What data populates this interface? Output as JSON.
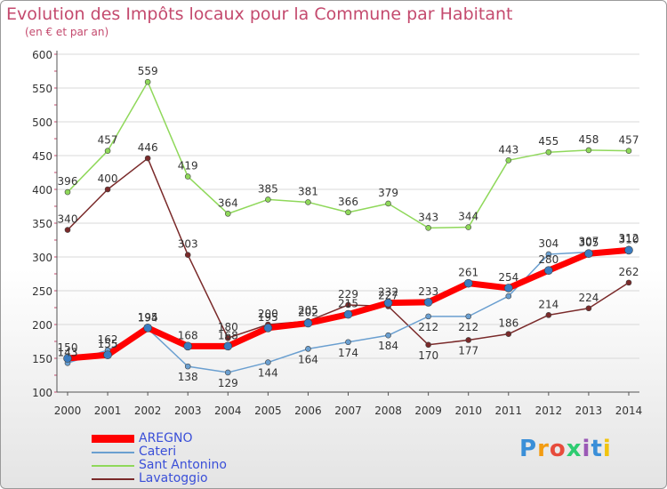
{
  "header": {
    "title": "Evolution des Impôts locaux pour la Commune par Habitant",
    "subtitle": "(en € et par an)"
  },
  "logo": {
    "text": "Proxiti",
    "colors": [
      "#3a8fd8",
      "#f39c12",
      "#e74c3c",
      "#2ecc71",
      "#9b59b6",
      "#3a8fd8",
      "#f1c40f"
    ]
  },
  "chart_data": {
    "type": "line",
    "title": "Evolution des Impôts locaux pour la Commune par Habitant",
    "subtitle": "(en € et par an)",
    "xlabel": "",
    "ylabel": "",
    "x": [
      "2000",
      "2001",
      "2002",
      "2003",
      "2004",
      "2005",
      "2006",
      "2007",
      "2008",
      "2009",
      "2010",
      "2011",
      "2012",
      "2013",
      "2014"
    ],
    "ylim": [
      100,
      600
    ],
    "yticks": [
      100,
      150,
      200,
      250,
      300,
      350,
      400,
      450,
      500,
      550,
      600
    ],
    "grid": "horizontal",
    "legend": "bottom-left",
    "series": [
      {
        "name": "AREGNO",
        "color": "#ff0000",
        "marker_color": "#3a7cc0",
        "values": [
          150,
          155,
          195,
          168,
          168,
          195,
          202,
          215,
          232,
          233,
          261,
          254,
          280,
          305,
          310
        ]
      },
      {
        "name": "Cateri",
        "color": "#6a9fd0",
        "values": [
          143,
          162,
          194,
          138,
          129,
          144,
          164,
          174,
          184,
          212,
          212,
          242,
          304,
          307,
          312
        ]
      },
      {
        "name": "Sant Antonino",
        "color": "#8fd85a",
        "values": [
          396,
          457,
          559,
          419,
          364,
          385,
          381,
          366,
          379,
          343,
          344,
          443,
          455,
          458,
          457
        ]
      },
      {
        "name": "Lavatoggio",
        "color": "#7a2a2a",
        "values": [
          340,
          400,
          446,
          303,
          180,
          200,
          205,
          229,
          227,
          170,
          177,
          186,
          214,
          224,
          262
        ]
      }
    ],
    "data_labels": [
      {
        "x": "2000",
        "text": "150"
      },
      {
        "x": "2000",
        "text": "143"
      },
      {
        "x": "2001",
        "text": "155"
      },
      {
        "x": "2001",
        "text": "162"
      },
      {
        "x": "2002",
        "text": "195"
      },
      {
        "x": "2002",
        "text": "194"
      },
      {
        "x": "2003",
        "text": "168"
      },
      {
        "x": "2003",
        "text": "138"
      },
      {
        "x": "2004",
        "text": "168"
      },
      {
        "x": "2004",
        "text": "129"
      },
      {
        "x": "2005",
        "text": "195"
      },
      {
        "x": "2005",
        "text": "144"
      },
      {
        "x": "2006",
        "text": "202"
      },
      {
        "x": "2006",
        "text": "164"
      },
      {
        "x": "2007",
        "text": "215"
      },
      {
        "x": "2007",
        "text": "174"
      },
      {
        "x": "2008",
        "text": "232"
      },
      {
        "x": "2008",
        "text": "184"
      },
      {
        "x": "2009",
        "text": "233"
      },
      {
        "x": "2009",
        "text": "212"
      },
      {
        "x": "2010",
        "text": "261"
      },
      {
        "x": "2010",
        "text": "212"
      },
      {
        "x": "2011",
        "text": "254"
      },
      {
        "x": "2012",
        "text": "280"
      },
      {
        "x": "2012",
        "text": "304"
      },
      {
        "x": "2013",
        "text": "305"
      },
      {
        "x": "2013",
        "text": "307"
      },
      {
        "x": "2014",
        "text": "310"
      },
      {
        "x": "2014",
        "text": "312"
      },
      {
        "x": "2000",
        "text": "396"
      },
      {
        "x": "2001",
        "text": "457"
      },
      {
        "x": "2002",
        "text": "559"
      },
      {
        "x": "2003",
        "text": "419"
      },
      {
        "x": "2004",
        "text": "364"
      },
      {
        "x": "2005",
        "text": "385"
      },
      {
        "x": "2006",
        "text": "381"
      },
      {
        "x": "2007",
        "text": "366"
      },
      {
        "x": "2008",
        "text": "379"
      },
      {
        "x": "2009",
        "text": "343"
      },
      {
        "x": "2010",
        "text": "344"
      },
      {
        "x": "2011",
        "text": "443"
      },
      {
        "x": "2012",
        "text": "455"
      },
      {
        "x": "2013",
        "text": "458"
      },
      {
        "x": "2014",
        "text": "457"
      },
      {
        "x": "2000",
        "text": "340"
      },
      {
        "x": "2001",
        "text": "400"
      },
      {
        "x": "2002",
        "text": "446"
      },
      {
        "x": "2003",
        "text": "303"
      },
      {
        "x": "2004",
        "text": "180"
      },
      {
        "x": "2005",
        "text": "200"
      },
      {
        "x": "2006",
        "text": "205"
      },
      {
        "x": "2007",
        "text": "229"
      },
      {
        "x": "2008",
        "text": "227"
      },
      {
        "x": "2009",
        "text": "170"
      },
      {
        "x": "2010",
        "text": "177"
      },
      {
        "x": "2011",
        "text": "186"
      },
      {
        "x": "2012",
        "text": "214"
      },
      {
        "x": "2013",
        "text": "224"
      },
      {
        "x": "2014",
        "text": "262"
      }
    ]
  }
}
